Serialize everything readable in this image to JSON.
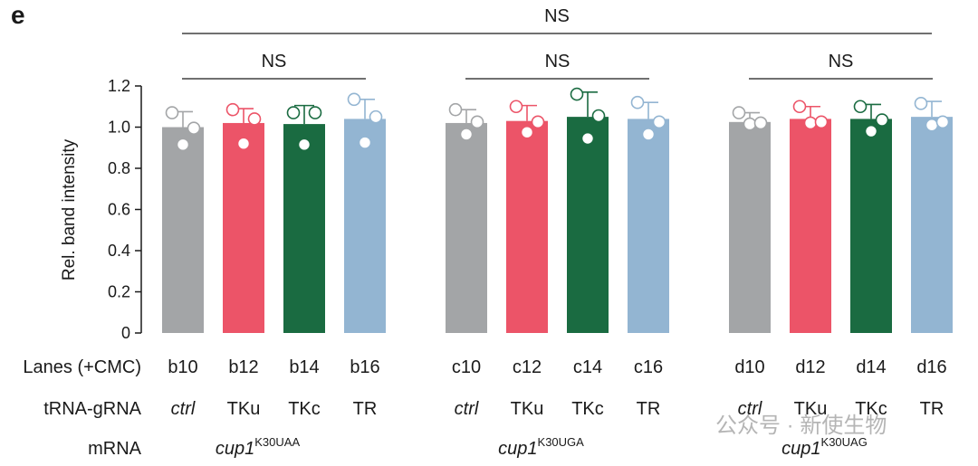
{
  "panel_label": "e",
  "row_labels": {
    "lanes": "Lanes (+CMC)",
    "trna": "tRNA-gRNA",
    "mrna": "mRNA"
  },
  "watermark": "公众号 · 新使生物",
  "colors": {
    "ctrl": "#a3a5a7",
    "TKu": "#ec5468",
    "TKc": "#1a6b41",
    "TR": "#93b5d2"
  },
  "chart_data": {
    "type": "bar",
    "title": "",
    "ylabel": "Rel. band intensity",
    "ylim": [
      0,
      1.2
    ],
    "yticks": [
      "0",
      "0.2",
      "0.4",
      "0.6",
      "0.8",
      "1.0",
      "1.2"
    ],
    "grid": false,
    "legend": "none",
    "groups": [
      {
        "mrna": "cup1",
        "mrna_sup": "K30UAA",
        "significance": "NS",
        "bars": [
          {
            "lane": "b10",
            "trna": "ctrl",
            "color_key": "ctrl",
            "value": 1.0,
            "error": 0.075,
            "points": [
              1.07,
              0.915,
              0.995
            ]
          },
          {
            "lane": "b12",
            "trna": "TKu",
            "color_key": "TKu",
            "value": 1.02,
            "error": 0.07,
            "points": [
              1.085,
              0.92,
              1.04
            ]
          },
          {
            "lane": "b14",
            "trna": "TKc",
            "color_key": "TKc",
            "value": 1.015,
            "error": 0.09,
            "points": [
              1.07,
              0.915,
              1.07
            ]
          },
          {
            "lane": "b16",
            "trna": "TR",
            "color_key": "TR",
            "value": 1.04,
            "error": 0.095,
            "points": [
              1.135,
              0.925,
              1.05
            ]
          }
        ]
      },
      {
        "mrna": "cup1",
        "mrna_sup": "K30UGA",
        "significance": "NS",
        "bars": [
          {
            "lane": "c10",
            "trna": "ctrl",
            "color_key": "ctrl",
            "value": 1.02,
            "error": 0.065,
            "points": [
              1.085,
              0.965,
              1.025
            ]
          },
          {
            "lane": "c12",
            "trna": "TKu",
            "color_key": "TKu",
            "value": 1.03,
            "error": 0.075,
            "points": [
              1.1,
              0.975,
              1.025
            ]
          },
          {
            "lane": "c14",
            "trna": "TKc",
            "color_key": "TKc",
            "value": 1.05,
            "error": 0.12,
            "points": [
              1.16,
              0.945,
              1.055
            ]
          },
          {
            "lane": "c16",
            "trna": "TR",
            "color_key": "TR",
            "value": 1.04,
            "error": 0.08,
            "points": [
              1.12,
              0.965,
              1.025
            ]
          }
        ]
      },
      {
        "mrna": "cup1",
        "mrna_sup": "K30UAG",
        "significance": "NS",
        "bars": [
          {
            "lane": "d10",
            "trna": "ctrl",
            "color_key": "ctrl",
            "value": 1.025,
            "error": 0.045,
            "points": [
              1.07,
              1.015,
              1.02
            ]
          },
          {
            "lane": "d12",
            "trna": "TKu",
            "color_key": "TKu",
            "value": 1.04,
            "error": 0.06,
            "points": [
              1.1,
              1.02,
              1.025
            ]
          },
          {
            "lane": "d14",
            "trna": "TKc",
            "color_key": "TKc",
            "value": 1.04,
            "error": 0.07,
            "points": [
              1.1,
              0.98,
              1.035
            ]
          },
          {
            "lane": "d16",
            "trna": "TR",
            "color_key": "TR",
            "value": 1.05,
            "error": 0.075,
            "points": [
              1.115,
              1.01,
              1.025
            ]
          }
        ]
      }
    ],
    "overall_significance": "NS"
  }
}
